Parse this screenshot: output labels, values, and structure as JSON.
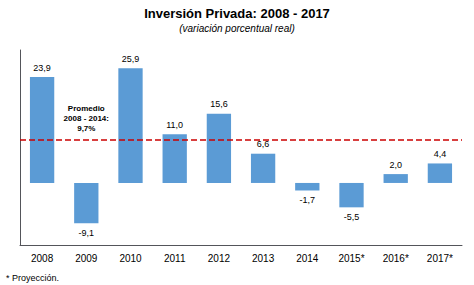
{
  "chart_data": {
    "type": "bar",
    "title": "Inversión Privada: 2008 - 2017",
    "subtitle": "(variación porcentual real)",
    "footnote": "* Proyección.",
    "categories": [
      "2008",
      "2009",
      "2010",
      "2011",
      "2012",
      "2013",
      "2014",
      "2015*",
      "2016*",
      "2017*"
    ],
    "values": [
      23.9,
      -9.1,
      25.9,
      11.0,
      15.6,
      6.6,
      -1.7,
      -5.5,
      2.0,
      4.4
    ],
    "value_labels": [
      "23,9",
      "-9,1",
      "25,9",
      "11,0",
      "15,6",
      "6,6",
      "-1,7",
      "-5,5",
      "2,0",
      "4,4"
    ],
    "data_labels": true,
    "color": "#5B9BD5",
    "ylim": [
      -14,
      30
    ],
    "tick_labels": "x",
    "grid": false,
    "annotations": [
      {
        "text": "Promedio\n2008 - 2014:\n9,7%",
        "y": 9.7,
        "color": "#CC0000",
        "line_style": "dashed"
      }
    ]
  }
}
